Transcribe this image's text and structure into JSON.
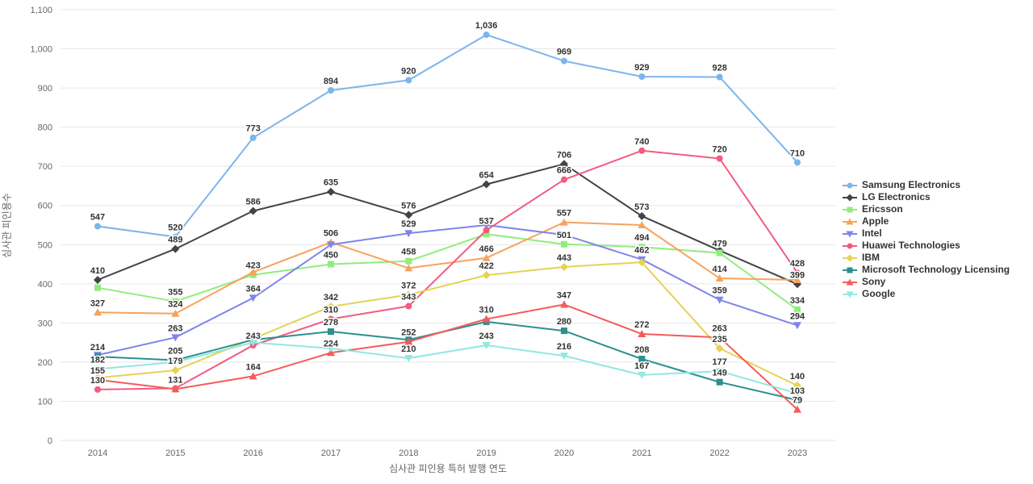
{
  "chart_data": {
    "type": "line",
    "title": "",
    "xlabel": "심사관 피인용 특허 발행 연도",
    "ylabel": "심사관 피인용수",
    "x": [
      "2014",
      "2015",
      "2016",
      "2017",
      "2018",
      "2019",
      "2020",
      "2021",
      "2022",
      "2023"
    ],
    "ylim": [
      0,
      1100
    ],
    "ytick_step": 100,
    "grid": "horizontal",
    "legend_position": "right",
    "series": [
      {
        "name": "Samsung Electronics",
        "color": "#7cb5ec",
        "marker": "circle",
        "values": [
          547,
          520,
          773,
          894,
          920,
          1036,
          969,
          929,
          928,
          710
        ],
        "labels": [
          "547",
          "520",
          "773",
          "894",
          "920",
          "1,036",
          "969",
          "929",
          "928",
          "710"
        ]
      },
      {
        "name": "LG Electronics",
        "color": "#434348",
        "marker": "diamond",
        "values": [
          410,
          489,
          586,
          635,
          576,
          654,
          706,
          573,
          485,
          399
        ],
        "labels": [
          "410",
          "489",
          "586",
          "635",
          "576",
          "654",
          "706",
          "573",
          null,
          "399"
        ]
      },
      {
        "name": "Ericsson",
        "color": "#90ed7d",
        "marker": "square",
        "values": [
          390,
          355,
          423,
          450,
          458,
          527,
          501,
          494,
          479,
          334
        ],
        "labels": [
          null,
          "355",
          "423",
          "450",
          "458",
          null,
          "501",
          "494",
          "479",
          "334"
        ]
      },
      {
        "name": "Apple",
        "color": "#f7a35c",
        "marker": "triangle",
        "values": [
          327,
          324,
          430,
          506,
          440,
          466,
          557,
          550,
          414,
          410
        ],
        "labels": [
          "327",
          "324",
          null,
          "506",
          null,
          "466",
          "557",
          null,
          "414",
          null
        ]
      },
      {
        "name": "Intel",
        "color": "#8085e9",
        "marker": "triangle-down",
        "values": [
          218,
          263,
          364,
          500,
          529,
          550,
          525,
          462,
          359,
          294
        ],
        "labels": [
          null,
          "263",
          "364",
          null,
          "529",
          null,
          null,
          "462",
          "359",
          "294"
        ]
      },
      {
        "name": "Huawei Technologies",
        "color": "#f15c80",
        "marker": "circle",
        "values": [
          130,
          133,
          243,
          310,
          343,
          537,
          666,
          740,
          720,
          428
        ],
        "labels": [
          "130",
          null,
          "243",
          "310",
          "343",
          "537",
          "666",
          "740",
          "720",
          "428"
        ]
      },
      {
        "name": "IBM",
        "color": "#e4d354",
        "marker": "diamond",
        "values": [
          160,
          179,
          260,
          342,
          372,
          422,
          443,
          455,
          235,
          140
        ],
        "labels": [
          null,
          "179",
          null,
          "342",
          "372",
          "422",
          "443",
          null,
          "235",
          "140"
        ]
      },
      {
        "name": "Microsoft Technology Licensing",
        "color": "#2b908f",
        "marker": "square",
        "values": [
          214,
          205,
          257,
          278,
          257,
          303,
          280,
          208,
          149,
          103
        ],
        "labels": [
          "214",
          "205",
          null,
          "278",
          null,
          null,
          "280",
          "208",
          "149",
          "103"
        ]
      },
      {
        "name": "Sony",
        "color": "#f45b5b",
        "marker": "triangle",
        "values": [
          155,
          131,
          164,
          224,
          252,
          310,
          347,
          272,
          263,
          79
        ],
        "labels": [
          "155",
          "131",
          "164",
          "224",
          "252",
          "310",
          "347",
          "272",
          "263",
          "79"
        ]
      },
      {
        "name": "Google",
        "color": "#91e8e1",
        "marker": "triangle-down",
        "values": [
          182,
          200,
          250,
          235,
          210,
          243,
          216,
          167,
          177,
          120
        ],
        "labels": [
          "182",
          null,
          null,
          null,
          "210",
          "243",
          "216",
          "167",
          "177",
          null
        ]
      }
    ]
  }
}
